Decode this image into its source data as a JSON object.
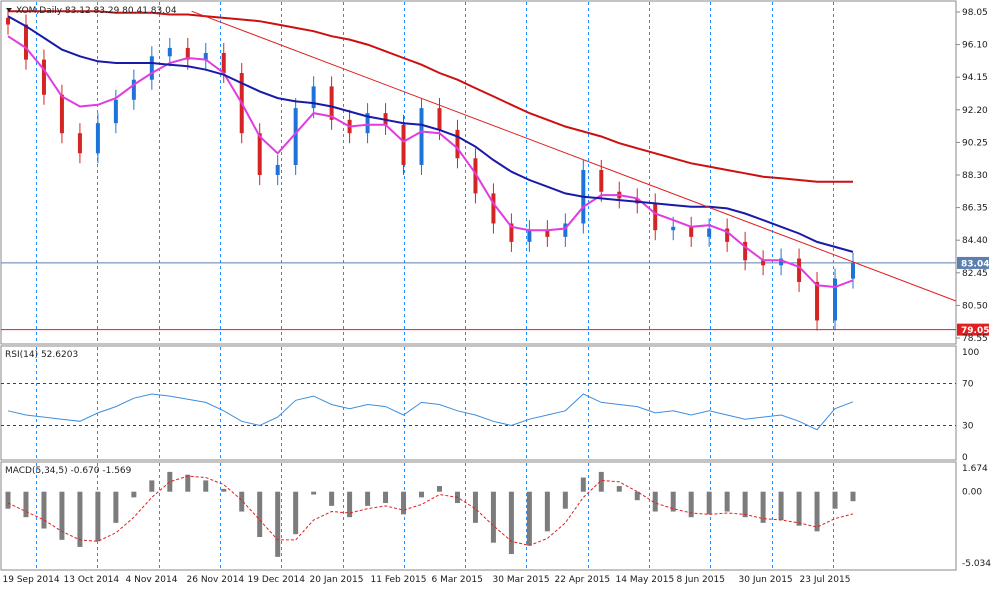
{
  "colors": {
    "background": "#ffffff",
    "frame": "#8a8a8a",
    "grid": "#1e90ff",
    "candle_up": "#1e73d8",
    "candle_down": "#d42424",
    "ma_fast": "#e03ce0",
    "ma_mid": "#1a1aa8",
    "ma_slow": "#cc1010",
    "trendline": "#e02020",
    "support": "#e02020",
    "price_line": "#5a7fb0",
    "rsi": "#3e8ede",
    "macd_hist": "#7c7c7c",
    "macd_signal": "#e02020"
  },
  "main_panel": {
    "title": "XOM,Daily  83.12 83.29 80.41 83.04",
    "triangle_icon": "triangle-down-icon",
    "y_ticks": [
      "98.05",
      "96.10",
      "94.15",
      "92.20",
      "90.25",
      "88.30",
      "86.35",
      "84.40",
      "82.45",
      "80.50",
      "78.55"
    ],
    "current_price_label": "83.04",
    "support_label": "79.05"
  },
  "rsi_panel": {
    "title": "RSI(14) 52.6203",
    "y_ticks": [
      "100",
      "70",
      "30",
      "0"
    ]
  },
  "macd_panel": {
    "title": "MACD(5,34,5) -0.670 -1.569",
    "y_ticks": [
      "1.674",
      "0.00",
      "-5.034"
    ]
  },
  "x_axis": {
    "labels": [
      "19 Sep 2014",
      "13 Oct 2014",
      "4 Nov 2014",
      "26 Nov 2014",
      "19 Dec 2014",
      "20 Jan 2015",
      "11 Feb 2015",
      "6 Mar 2015",
      "30 Mar 2015",
      "22 Apr 2015",
      "14 May 2015",
      "8 Jun 2015",
      "30 Jun 2015",
      "23 Jul 2015"
    ]
  },
  "chart_data": [
    {
      "type": "candlestick",
      "symbol": "XOM",
      "timeframe": "Daily",
      "ohlc_last": {
        "open": 83.12,
        "high": 83.29,
        "low": 80.41,
        "close": 83.04
      },
      "x": [
        "2014-09-19",
        "2014-09-26",
        "2014-10-03",
        "2014-10-10",
        "2014-10-13",
        "2014-10-17",
        "2014-10-24",
        "2014-10-31",
        "2014-11-04",
        "2014-11-07",
        "2014-11-14",
        "2014-11-21",
        "2014-11-26",
        "2014-12-03",
        "2014-12-10",
        "2014-12-16",
        "2014-12-19",
        "2014-12-26",
        "2015-01-05",
        "2015-01-12",
        "2015-01-20",
        "2015-01-27",
        "2015-02-03",
        "2015-02-11",
        "2015-02-18",
        "2015-02-25",
        "2015-03-06",
        "2015-03-13",
        "2015-03-20",
        "2015-03-30",
        "2015-04-06",
        "2015-04-13",
        "2015-04-22",
        "2015-04-29",
        "2015-05-07",
        "2015-05-14",
        "2015-05-21",
        "2015-05-29",
        "2015-06-08",
        "2015-06-15",
        "2015-06-22",
        "2015-06-30",
        "2015-07-07",
        "2015-07-14",
        "2015-07-20",
        "2015-07-23",
        "2015-07-27",
        "2015-07-29"
      ],
      "close": [
        97.3,
        95.2,
        93.1,
        90.8,
        89.6,
        91.4,
        92.8,
        94.0,
        95.4,
        95.9,
        95.2,
        95.6,
        94.4,
        90.8,
        88.3,
        88.9,
        92.3,
        93.6,
        91.6,
        90.8,
        92.0,
        91.3,
        88.9,
        92.3,
        91.0,
        89.3,
        87.2,
        85.4,
        84.3,
        85.0,
        84.6,
        85.4,
        88.6,
        87.3,
        86.9,
        86.6,
        85.0,
        85.2,
        84.6,
        85.1,
        84.3,
        83.2,
        82.9,
        83.3,
        81.9,
        79.6,
        82.1,
        83.04
      ],
      "series": [
        {
          "name": "MA fast",
          "values": [
            96.6,
            95.9,
            94.6,
            93.0,
            92.4,
            92.5,
            92.9,
            93.7,
            94.4,
            95.0,
            95.3,
            95.2,
            94.4,
            92.6,
            90.6,
            89.6,
            90.8,
            92.0,
            91.8,
            91.2,
            91.3,
            91.3,
            90.3,
            90.9,
            90.8,
            89.9,
            88.4,
            86.6,
            85.2,
            85.0,
            85.0,
            85.1,
            86.4,
            87.1,
            87.1,
            86.9,
            86.0,
            85.6,
            85.2,
            85.3,
            84.9,
            84.0,
            83.2,
            83.2,
            82.8,
            81.7,
            81.6,
            82.0
          ]
        },
        {
          "name": "MA mid",
          "values": [
            97.8,
            97.2,
            96.5,
            95.8,
            95.4,
            95.1,
            95.0,
            95.0,
            95.0,
            94.9,
            94.8,
            94.6,
            94.3,
            93.8,
            93.3,
            92.9,
            92.7,
            92.6,
            92.4,
            92.1,
            91.8,
            91.6,
            91.4,
            91.3,
            91.0,
            90.6,
            90.0,
            89.2,
            88.5,
            88.0,
            87.6,
            87.2,
            87.0,
            86.9,
            86.8,
            86.7,
            86.6,
            86.5,
            86.4,
            86.4,
            86.3,
            86.0,
            85.6,
            85.2,
            84.8,
            84.3,
            84.0,
            83.7
          ]
        },
        {
          "name": "MA slow",
          "values": [
            98.1,
            98.1,
            98.1,
            98.1,
            98.1,
            98.1,
            98.0,
            98.0,
            98.0,
            97.9,
            97.9,
            97.8,
            97.7,
            97.6,
            97.5,
            97.3,
            97.1,
            96.9,
            96.6,
            96.4,
            96.1,
            95.7,
            95.3,
            94.9,
            94.4,
            94.0,
            93.5,
            93.0,
            92.5,
            92.0,
            91.6,
            91.2,
            90.9,
            90.6,
            90.2,
            89.9,
            89.6,
            89.3,
            89.0,
            88.8,
            88.6,
            88.4,
            88.2,
            88.1,
            88.0,
            87.9,
            87.9,
            87.9
          ]
        }
      ],
      "trendline": {
        "start": {
          "x": "2014-11-26",
          "y": 98.1
        },
        "end": {
          "x": "2015-07-29",
          "y": 83.1
        }
      },
      "support_level": 79.05,
      "ylim": [
        78.55,
        98.05
      ]
    },
    {
      "type": "line",
      "name": "RSI(14)",
      "last_value": 52.6203,
      "levels": [
        70,
        30
      ],
      "ylim": [
        0,
        100
      ],
      "values": [
        44,
        40,
        38,
        36,
        34,
        42,
        48,
        56,
        60,
        58,
        55,
        52,
        44,
        34,
        30,
        38,
        54,
        58,
        50,
        46,
        50,
        48,
        40,
        52,
        50,
        44,
        40,
        34,
        30,
        36,
        40,
        44,
        60,
        52,
        50,
        48,
        42,
        44,
        40,
        44,
        40,
        36,
        38,
        40,
        34,
        26,
        46,
        52.6
      ]
    },
    {
      "type": "bar",
      "name": "MACD(5,34,5)",
      "last_value": -0.67,
      "signal_last": -1.569,
      "ylim": [
        -5.034,
        1.674
      ],
      "values": [
        -1.2,
        -1.8,
        -2.6,
        -3.4,
        -3.9,
        -3.5,
        -2.2,
        -0.4,
        0.8,
        1.4,
        1.2,
        0.8,
        0.2,
        -1.4,
        -3.2,
        -4.6,
        -3.0,
        -0.2,
        -1.0,
        -1.8,
        -1.0,
        -0.8,
        -1.6,
        -0.4,
        0.4,
        -0.8,
        -2.2,
        -3.6,
        -4.4,
        -3.8,
        -2.8,
        -1.2,
        1.0,
        1.4,
        0.4,
        -0.6,
        -1.4,
        -1.4,
        -1.8,
        -1.6,
        -1.4,
        -1.8,
        -2.2,
        -2.0,
        -2.4,
        -2.8,
        -1.2,
        -0.67
      ],
      "signal": [
        -0.8,
        -1.4,
        -2.0,
        -2.8,
        -3.4,
        -3.5,
        -2.9,
        -1.8,
        -0.4,
        0.7,
        1.1,
        1.0,
        0.5,
        -0.6,
        -2.0,
        -3.4,
        -3.4,
        -2.0,
        -1.4,
        -1.5,
        -1.2,
        -1.0,
        -1.3,
        -0.9,
        -0.2,
        -0.4,
        -1.2,
        -2.4,
        -3.5,
        -3.8,
        -3.3,
        -2.2,
        -0.4,
        0.8,
        0.7,
        0.0,
        -0.8,
        -1.2,
        -1.5,
        -1.6,
        -1.5,
        -1.6,
        -1.9,
        -2.0,
        -2.2,
        -2.5,
        -1.9,
        -1.569
      ]
    }
  ]
}
